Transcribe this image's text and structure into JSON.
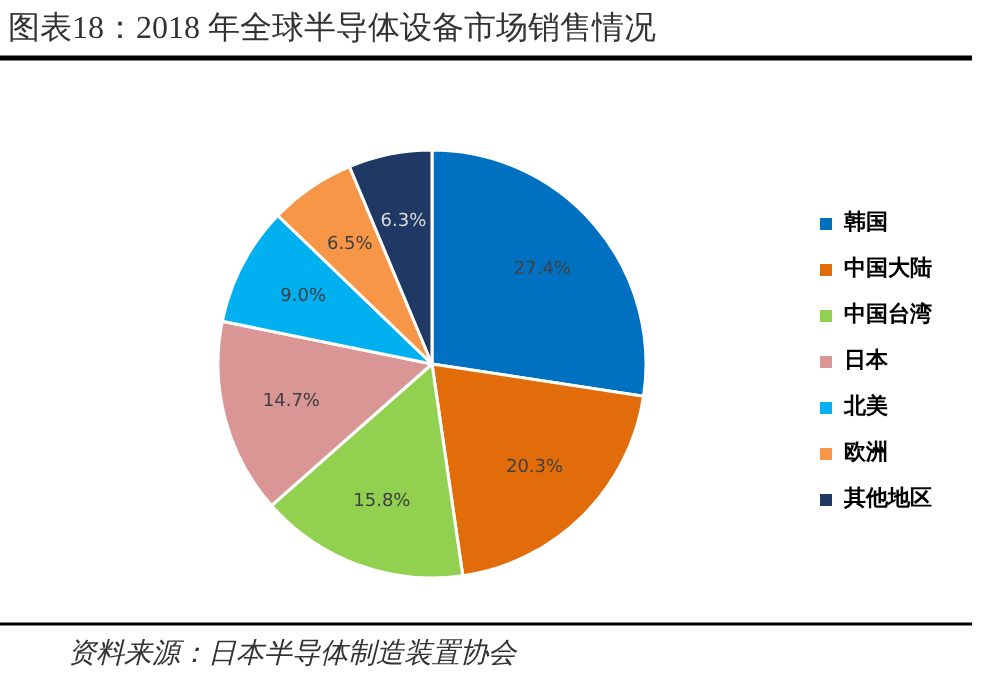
{
  "chart_data": {
    "type": "pie",
    "title": "图表18：2018 年全球半导体设备市场销售情况",
    "categories": [
      "韩国",
      "中国大陆",
      "中国台湾",
      "日本",
      "北美",
      "欧洲",
      "其他地区"
    ],
    "values": [
      27.4,
      20.3,
      15.8,
      14.7,
      9.0,
      6.5,
      6.3
    ],
    "colors": [
      "#0070c0",
      "#e36c0a",
      "#92d050",
      "#d99694",
      "#00b0f0",
      "#f79646",
      "#1f3864"
    ],
    "value_labels": [
      "27.4%",
      "20.3%",
      "15.8%",
      "14.7%",
      "9.0%",
      "6.5%",
      "6.3%"
    ],
    "legend": "right",
    "annotations": [
      "资料来源：日本半导体制造装置协会"
    ]
  }
}
